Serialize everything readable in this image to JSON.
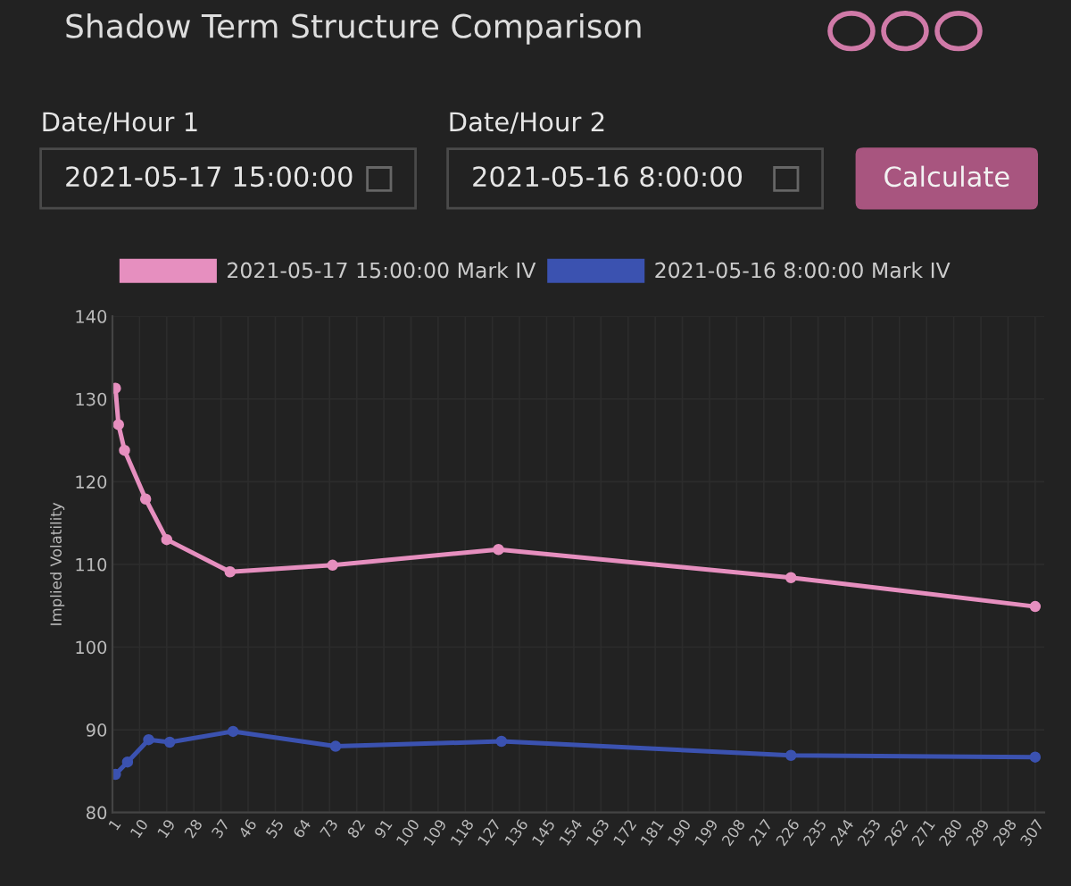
{
  "chart_data": {
    "type": "line",
    "title": "Shadow Term Structure Comparison",
    "annotations": [
      "Date/Hour 1",
      "2021-05-17 15:00:00",
      "Date/Hour 2",
      "2021-05-16 8:00:00",
      "Calculate"
    ],
    "ylabel": "Implied Volatility",
    "series": [
      {
        "name": "2021-05-17 15:00:00 Mark IV",
        "color": "#e68fbf",
        "x": [
          2,
          3,
          5,
          12,
          19,
          40,
          74,
          129,
          226,
          307
        ],
        "values": [
          131.3,
          126.9,
          123.8,
          117.9,
          113,
          109.1,
          109.9,
          111.8,
          108.4,
          104.9
        ]
      },
      {
        "name": "2021-05-16 8:00:00 Mark IV",
        "color": "#3b52b0",
        "x": [
          2,
          6,
          13,
          20,
          41,
          75,
          130,
          226,
          307
        ],
        "values": [
          84.6,
          86.1,
          88.8,
          88.5,
          89.8,
          88.0,
          88.6,
          86.9,
          86.7
        ]
      }
    ],
    "xlim": [
      1,
      310
    ],
    "xticks": [
      1,
      10,
      19,
      28,
      37,
      46,
      55,
      64,
      73,
      82,
      91,
      100,
      109,
      118,
      127,
      136,
      145,
      154,
      163,
      172,
      181,
      190,
      199,
      208,
      217,
      226,
      235,
      244,
      253,
      262,
      271,
      280,
      289,
      298,
      307
    ],
    "ylim": [
      80,
      140
    ],
    "yticks": [
      80,
      90,
      100,
      110,
      120,
      130,
      140
    ],
    "grid": true,
    "legend": "top",
    "marker": "circle",
    "line_style": "solid"
  }
}
